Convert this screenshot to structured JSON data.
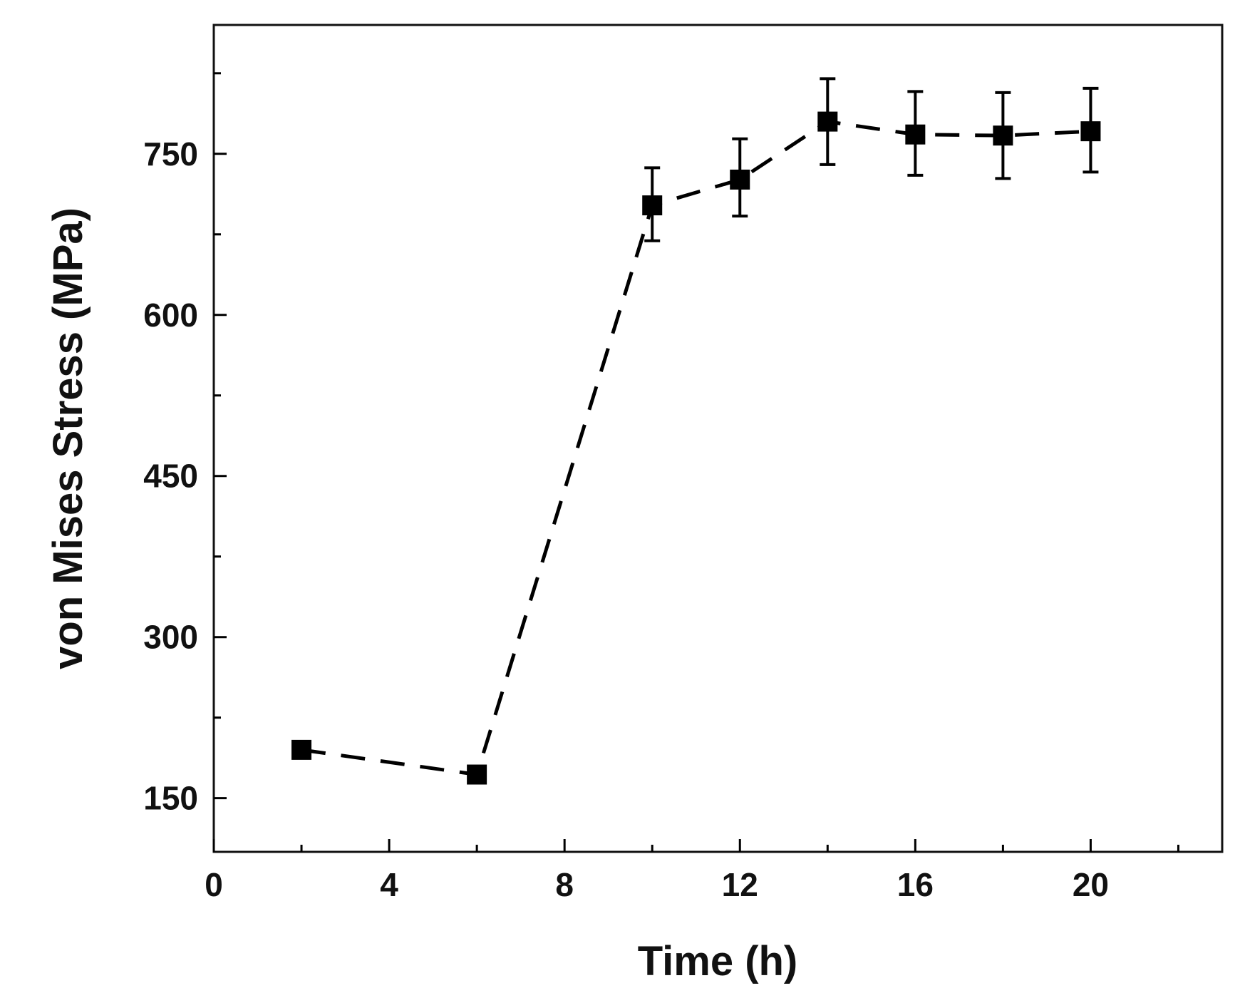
{
  "chart_data": {
    "type": "line",
    "title": "",
    "xlabel": "Time (h)",
    "ylabel": "von Mises Stress (MPa)",
    "xlim": [
      0,
      23
    ],
    "ylim": [
      100,
      870
    ],
    "x_ticks": [
      0,
      4,
      8,
      12,
      16,
      20
    ],
    "x_minor_ticks": [
      2,
      6,
      10,
      14,
      18,
      22
    ],
    "y_ticks": [
      150,
      300,
      450,
      600,
      750
    ],
    "y_minor_ticks": [
      225,
      375,
      525,
      675,
      825
    ],
    "grid": false,
    "line_style": "dashed",
    "marker": "square",
    "color": "#000000",
    "series": [
      {
        "name": "von Mises Stress",
        "x": [
          2,
          6,
          10,
          12,
          14,
          16,
          18,
          20
        ],
        "y": [
          195,
          172,
          702,
          726,
          780,
          768,
          767,
          771
        ],
        "err_low": [
          0,
          0,
          33,
          34,
          40,
          38,
          40,
          38
        ],
        "err_high": [
          0,
          0,
          35,
          38,
          40,
          40,
          40,
          40
        ]
      }
    ]
  }
}
